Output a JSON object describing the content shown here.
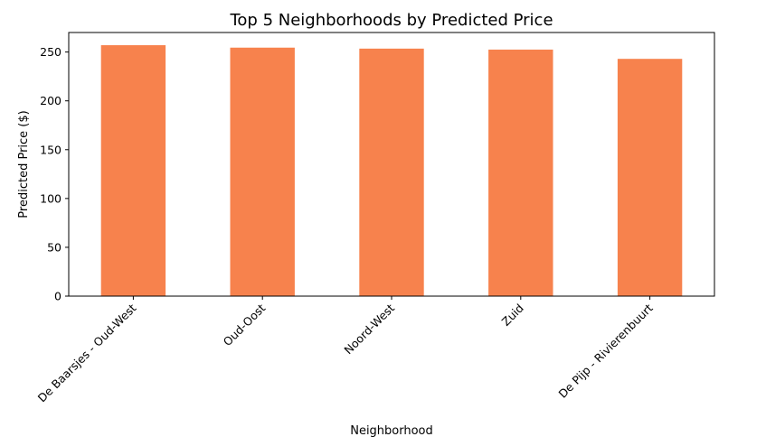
{
  "chart_data": {
    "type": "bar",
    "title": "Top 5 Neighborhoods by Predicted Price",
    "xlabel": "Neighborhood",
    "ylabel": "Predicted Price ($)",
    "categories": [
      "De Baarsjes - Oud-West",
      "Oud-Oost",
      "Noord-West",
      "Zuid",
      "De Pijp - Rivierenbuurt"
    ],
    "values": [
      257,
      254.5,
      253.5,
      252.5,
      243
    ],
    "ylim": [
      0,
      270
    ],
    "yticks": [
      0,
      50,
      100,
      150,
      200,
      250
    ],
    "bar_color": "#f7824d",
    "grid": false,
    "legend": "none"
  }
}
